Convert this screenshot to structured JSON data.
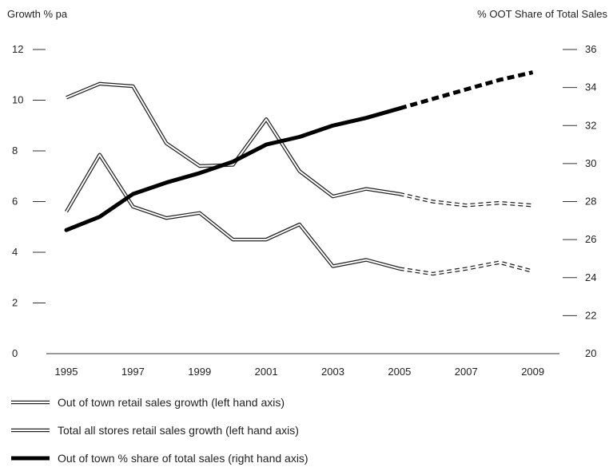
{
  "chart_data": {
    "type": "line",
    "left_axis": {
      "label": "Growth % pa",
      "ylim": [
        0,
        12
      ],
      "ticks": [
        0,
        2,
        4,
        6,
        8,
        10,
        12
      ]
    },
    "right_axis": {
      "label": "% OOT Share of Total Sales",
      "ylim": [
        20,
        36
      ],
      "ticks": [
        20,
        22,
        24,
        26,
        28,
        30,
        32,
        34,
        36
      ]
    },
    "x_ticks": [
      1995,
      1997,
      1999,
      2001,
      2003,
      2005,
      2007,
      2009
    ],
    "xlim": [
      1994.4,
      2009.8
    ],
    "forecast_from": 2005,
    "series": [
      {
        "name": "Out of town retail sales growth (left hand axis)",
        "axis": "left",
        "style": "double",
        "x": [
          1995,
          1996,
          1997,
          1998,
          1999,
          2000,
          2001,
          2002,
          2003,
          2004,
          2005,
          2006,
          2007,
          2008,
          2009
        ],
        "y": [
          10.1,
          10.65,
          10.55,
          8.3,
          7.4,
          7.45,
          9.25,
          7.2,
          6.2,
          6.5,
          6.3,
          6.0,
          5.85,
          5.95,
          5.85
        ]
      },
      {
        "name": "Total all stores retail sales growth (left hand axis)",
        "axis": "left",
        "style": "double",
        "x": [
          1995,
          1996,
          1997,
          1998,
          1999,
          2000,
          2001,
          2002,
          2003,
          2004,
          2005,
          2006,
          2007,
          2008,
          2009
        ],
        "y": [
          5.6,
          7.85,
          5.8,
          5.35,
          5.55,
          4.5,
          4.5,
          5.1,
          3.45,
          3.7,
          3.35,
          3.15,
          3.35,
          3.6,
          3.25
        ]
      },
      {
        "name": "Out of town % share of total sales (right hand axis)",
        "axis": "right",
        "style": "thick",
        "x": [
          1995,
          1996,
          1997,
          1998,
          1999,
          2000,
          2001,
          2002,
          2003,
          2004,
          2005,
          2006,
          2007,
          2008,
          2009
        ],
        "y": [
          26.5,
          27.2,
          28.4,
          29.0,
          29.5,
          30.1,
          31.0,
          31.4,
          32.0,
          32.4,
          32.9,
          33.4,
          33.9,
          34.4,
          34.8
        ]
      }
    ]
  }
}
